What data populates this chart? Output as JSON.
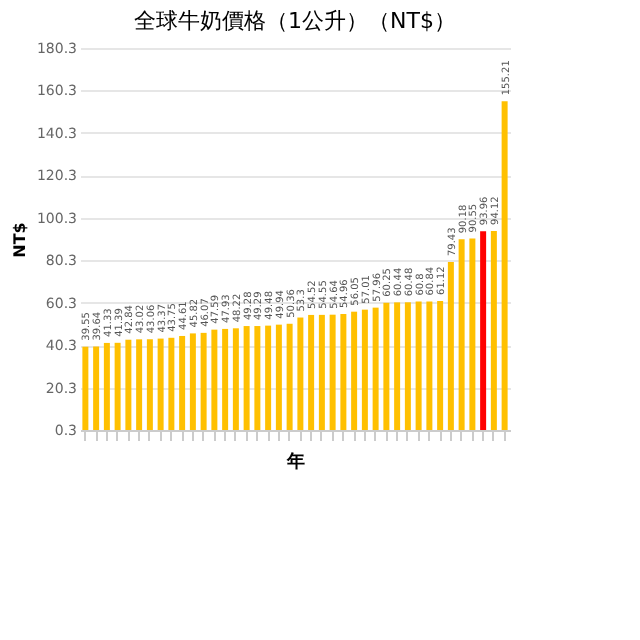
{
  "chart_data": {
    "type": "bar",
    "title": "全球牛奶價格（1公升）（NT$）",
    "xlabel": "年",
    "ylabel": "NT$",
    "categories": [
      null,
      null,
      null,
      null,
      null,
      null,
      null,
      null,
      null,
      null,
      null,
      null,
      null,
      null,
      null,
      null,
      null,
      null,
      null,
      null,
      null,
      null,
      null,
      null,
      null,
      null,
      null,
      null,
      null,
      null,
      null,
      null,
      null,
      null,
      null,
      null,
      null,
      null,
      null,
      null
    ],
    "values": [
      39.55,
      39.64,
      41.33,
      41.39,
      42.84,
      43.02,
      43.06,
      43.37,
      43.75,
      44.61,
      45.82,
      46.07,
      47.59,
      47.93,
      48.22,
      49.28,
      49.29,
      49.48,
      49.94,
      50.36,
      53.3,
      54.52,
      54.55,
      54.64,
      54.96,
      56.05,
      57.01,
      57.96,
      60.25,
      60.44,
      60.48,
      60.8,
      60.84,
      61.12,
      79.43,
      90.18,
      90.55,
      93.96,
      94.12,
      155.21
    ],
    "colors": [
      "#ffc000",
      "#ffc000",
      "#ffc000",
      "#ffc000",
      "#ffc000",
      "#ffc000",
      "#ffc000",
      "#ffc000",
      "#ffc000",
      "#ffc000",
      "#ffc000",
      "#ffc000",
      "#ffc000",
      "#ffc000",
      "#ffc000",
      "#ffc000",
      "#ffc000",
      "#ffc000",
      "#ffc000",
      "#ffc000",
      "#ffc000",
      "#ffc000",
      "#ffc000",
      "#ffc000",
      "#ffc000",
      "#ffc000",
      "#ffc000",
      "#ffc000",
      "#ffc000",
      "#ffc000",
      "#ffc000",
      "#ffc000",
      "#ffc000",
      "#ffc000",
      "#ffc000",
      "#ffc000",
      "#ffc000",
      "#ff0000",
      "#ffc000",
      "#ffc000"
    ],
    "ylim": [
      0.3,
      180.3
    ],
    "yticks": [
      0.3,
      20.3,
      40.3,
      60.3,
      80.3,
      100.3,
      120.3,
      140.3,
      160.3,
      180.3
    ],
    "grid": "y",
    "data_labels": true
  }
}
